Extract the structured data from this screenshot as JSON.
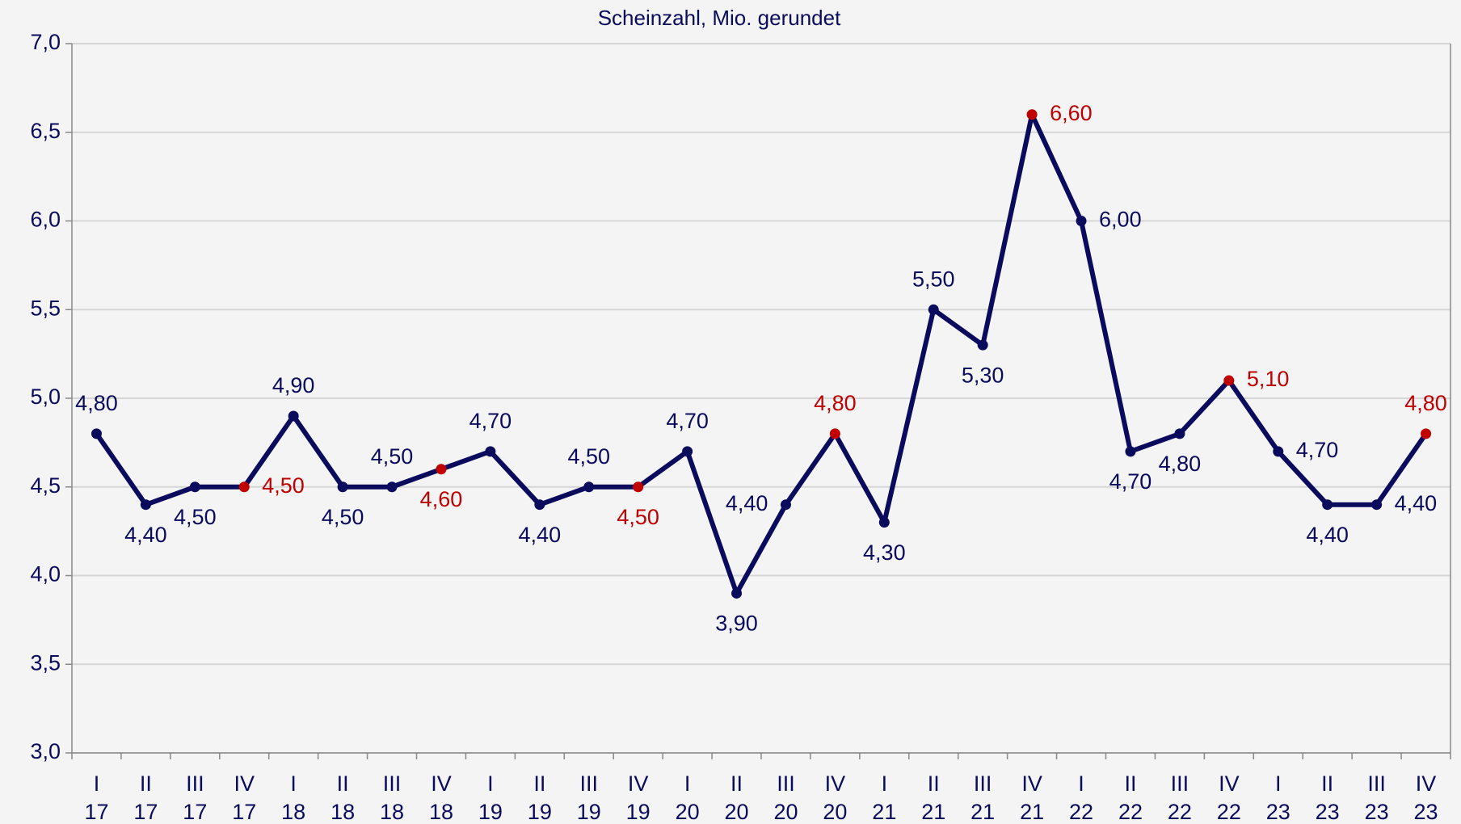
{
  "chart_data": {
    "type": "line",
    "title": "Scheinzahl, Mio. gerundet",
    "categories": [
      [
        "I",
        "17"
      ],
      [
        "II",
        "17"
      ],
      [
        "III",
        "17"
      ],
      [
        "IV",
        "17"
      ],
      [
        "I",
        "18"
      ],
      [
        "II",
        "18"
      ],
      [
        "III",
        "18"
      ],
      [
        "IV",
        "18"
      ],
      [
        "I",
        "19"
      ],
      [
        "II",
        "19"
      ],
      [
        "III",
        "19"
      ],
      [
        "IV",
        "19"
      ],
      [
        "I",
        "20"
      ],
      [
        "II",
        "20"
      ],
      [
        "III",
        "20"
      ],
      [
        "IV",
        "20"
      ],
      [
        "I",
        "21"
      ],
      [
        "II",
        "21"
      ],
      [
        "III",
        "21"
      ],
      [
        "IV",
        "21"
      ],
      [
        "I",
        "22"
      ],
      [
        "II",
        "22"
      ],
      [
        "III",
        "22"
      ],
      [
        "IV",
        "22"
      ],
      [
        "I",
        "23"
      ],
      [
        "II",
        "23"
      ],
      [
        "III",
        "23"
      ],
      [
        "IV",
        "23"
      ]
    ],
    "series": [
      {
        "color": "#0b0b5e",
        "values": [
          4.8,
          4.4,
          4.5,
          4.5,
          4.9,
          4.5,
          4.5,
          4.6,
          4.7,
          4.4,
          4.5,
          4.5,
          4.7,
          3.9,
          4.4,
          4.8,
          4.3,
          5.5,
          5.3,
          6.6,
          6.0,
          4.7,
          4.8,
          5.1,
          4.7,
          4.4,
          4.4,
          4.8
        ],
        "value_labels": [
          "4,80",
          "4,40",
          "4,50",
          "4,50",
          "4,90",
          "4,50",
          "4,50",
          "4,60",
          "4,70",
          "4,40",
          "4,50",
          "4,50",
          "4,70",
          "3,90",
          "4,40",
          "4,80",
          "4,30",
          "5,50",
          "5,30",
          "6,60",
          "6,00",
          "4,70",
          "4,80",
          "5,10",
          "4,70",
          "4,40",
          "4,40",
          "4,80"
        ],
        "point_colors": [
          "#0b0b5e",
          "#0b0b5e",
          "#0b0b5e",
          "#c00000",
          "#0b0b5e",
          "#0b0b5e",
          "#0b0b5e",
          "#c00000",
          "#0b0b5e",
          "#0b0b5e",
          "#0b0b5e",
          "#c00000",
          "#0b0b5e",
          "#0b0b5e",
          "#0b0b5e",
          "#c00000",
          "#0b0b5e",
          "#0b0b5e",
          "#0b0b5e",
          "#c00000",
          "#0b0b5e",
          "#0b0b5e",
          "#0b0b5e",
          "#c00000",
          "#0b0b5e",
          "#0b0b5e",
          "#0b0b5e",
          "#c00000"
        ]
      }
    ],
    "ylim": [
      3,
      7
    ],
    "yticks": [
      {
        "value": 3,
        "label": "3,0"
      },
      {
        "value": 3.5,
        "label": "3,5"
      },
      {
        "value": 4,
        "label": "4,0"
      },
      {
        "value": 4.5,
        "label": "4,5"
      },
      {
        "value": 5,
        "label": "5,0"
      },
      {
        "value": 5.5,
        "label": "5,5"
      },
      {
        "value": 6,
        "label": "6,0"
      },
      {
        "value": 6.5,
        "label": "6,5"
      },
      {
        "value": 7,
        "label": "7,0"
      }
    ],
    "grid": true
  }
}
